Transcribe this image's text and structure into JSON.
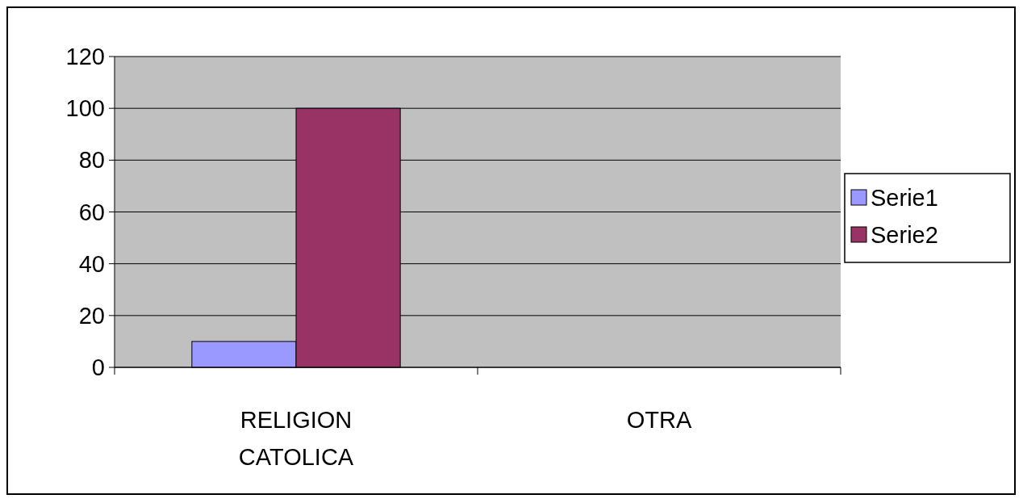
{
  "chart_data": {
    "type": "bar",
    "categories": [
      "RELIGION CATOLICA",
      "OTRA"
    ],
    "series": [
      {
        "name": "Serie1",
        "color": "#9999ff",
        "values": [
          10,
          0
        ]
      },
      {
        "name": "Serie2",
        "color": "#993366",
        "values": [
          100,
          0
        ]
      }
    ],
    "ylim": [
      0,
      120
    ],
    "yticks": [
      0,
      20,
      40,
      60,
      80,
      100,
      120
    ],
    "grid": "y",
    "legend": "right"
  }
}
